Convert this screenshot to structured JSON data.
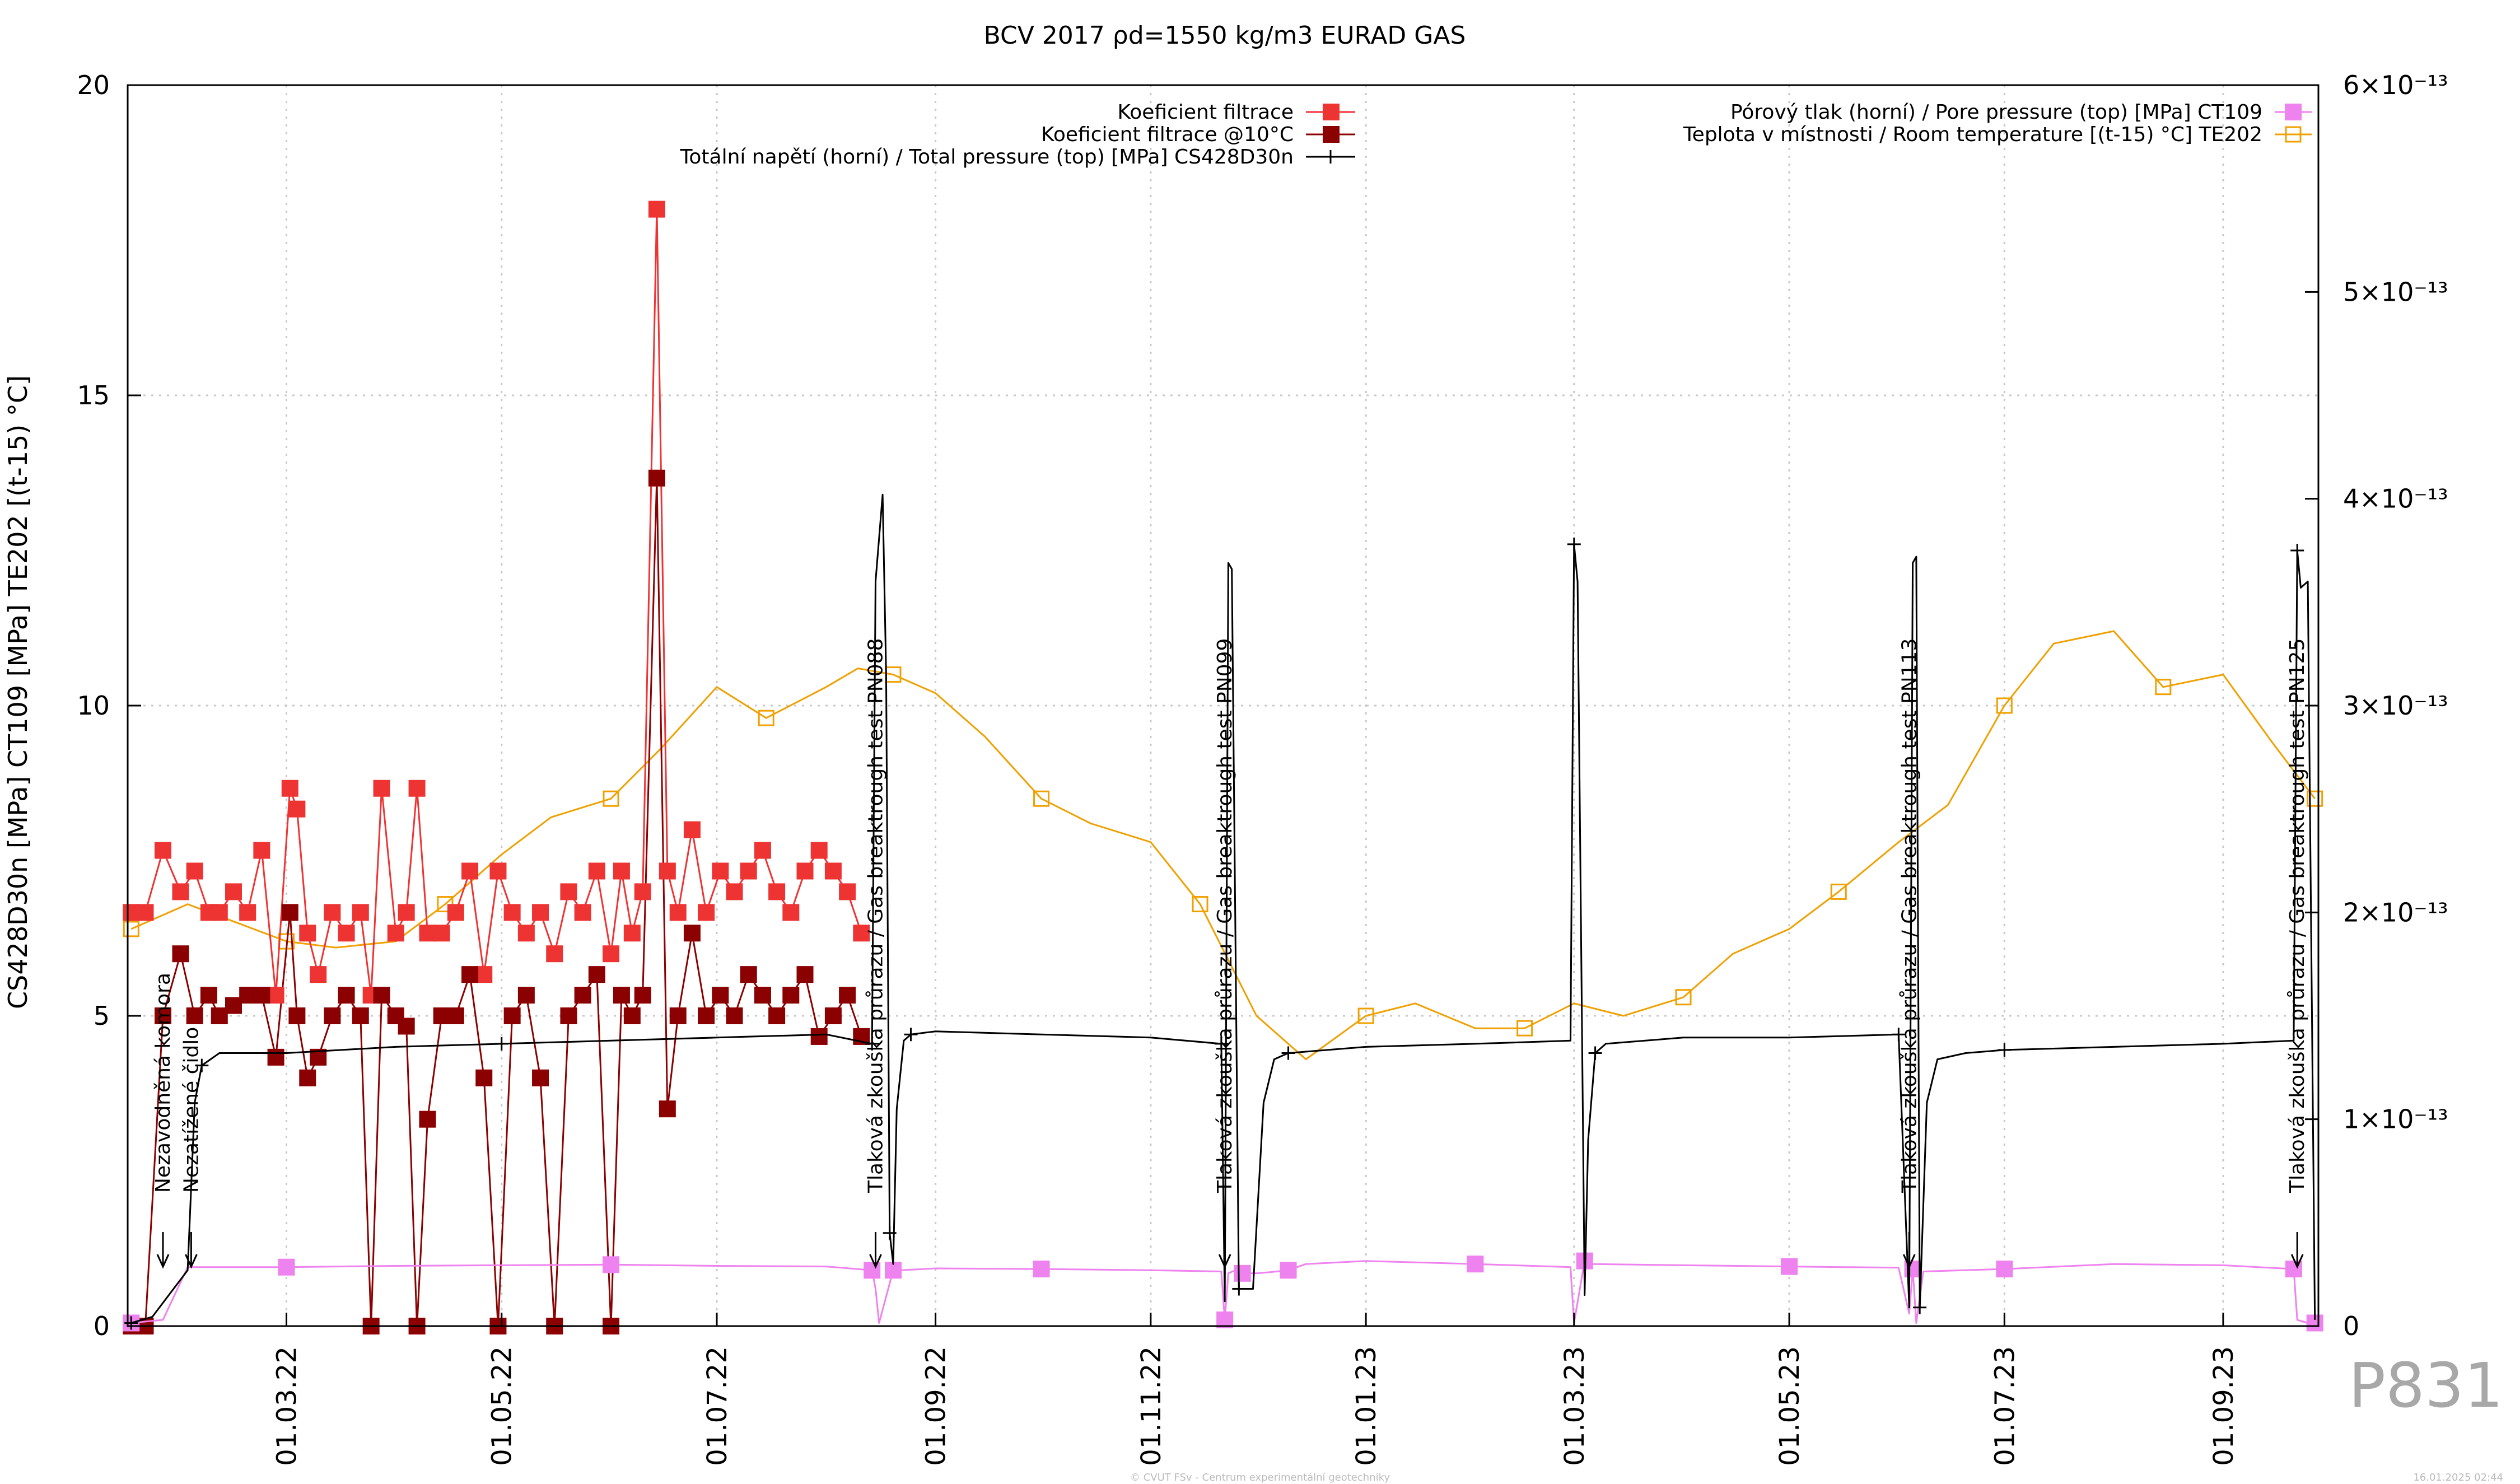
{
  "chart_data": {
    "type": "line",
    "title": "BCV 2017 ρd=1550 kg/m3 EURAD GAS",
    "ylabel": "CS428D30n [MPa] CT109 [MPa] TE202 [(t-15) °C]",
    "ylim": [
      0,
      20
    ],
    "y_ticks": [
      "0",
      "5",
      "10",
      "15",
      "20"
    ],
    "y2lim": [
      0,
      6e-13
    ],
    "y2_ticks": [
      "0",
      "1×10⁻¹³",
      "2×10⁻¹³",
      "3×10⁻¹³",
      "4×10⁻¹³",
      "5×10⁻¹³",
      "6×10⁻¹³"
    ],
    "xlim": [
      "2022-01-15",
      "2023-09-28"
    ],
    "x_ticks": [
      "01.03.22",
      "01.05.22",
      "01.07.22",
      "01.09.22",
      "01.11.22",
      "01.01.23",
      "01.03.23",
      "01.05.23",
      "01.07.23",
      "01.09.23"
    ],
    "x_tick_dates": [
      "2022-03-01",
      "2022-05-01",
      "2022-07-01",
      "2022-09-01",
      "2022-11-01",
      "2023-01-01",
      "2023-03-01",
      "2023-05-01",
      "2023-07-01",
      "2023-09-01"
    ],
    "grid": true,
    "legend_left": [
      "Koeficient filtrace",
      "Koeficient filtrace @10°C",
      "Totální napětí (horní) / Total pressure (top) [MPa] CS428D30n"
    ],
    "legend_right": [
      "Pórový tlak (horní) / Pore pressure (top) [MPa] CT109",
      "Teplota v místnosti / Room temperature [(t-15) °C] TE202"
    ],
    "annotations": [
      {
        "date": "2022-01-25",
        "text": "Nezavodněná komora"
      },
      {
        "date": "2022-02-02",
        "text": "Nezatížené čidlo"
      },
      {
        "date": "2022-08-15",
        "text": "Tlaková zkouška průrazu / Gas breaktrough test PN088"
      },
      {
        "date": "2022-11-22",
        "text": "Tlaková zkouška průrazu / Gas breaktrough test PN099"
      },
      {
        "date": "2023-06-04",
        "text": "Tlaková zkouška průrazu / Gas breaktrough test PN113"
      },
      {
        "date": "2023-09-22",
        "text": "Tlaková zkouška průrazu / Gas breaktrough test PN125"
      }
    ],
    "series": [
      {
        "name": "Totální napětí (horní) / Total pressure (top) [MPa] CS428D30n",
        "axis": "y",
        "color": "#000000",
        "x": [
          "2022-01-16",
          "2022-01-22",
          "2022-02-01",
          "2022-02-03",
          "2022-02-05",
          "2022-02-10",
          "2022-03-01",
          "2022-04-01",
          "2022-05-01",
          "2022-06-01",
          "2022-07-01",
          "2022-08-01",
          "2022-08-14",
          "2022-08-15",
          "2022-08-17",
          "2022-08-18",
          "2022-08-19",
          "2022-08-20",
          "2022-08-21",
          "2022-08-23",
          "2022-08-25",
          "2022-09-01",
          "2022-10-01",
          "2022-11-01",
          "2022-11-21",
          "2022-11-22",
          "2022-11-23",
          "2022-11-24",
          "2022-11-26",
          "2022-11-30",
          "2022-12-03",
          "2022-12-06",
          "2022-12-10",
          "2023-01-01",
          "2023-02-01",
          "2023-02-28",
          "2023-03-01",
          "2023-03-02",
          "2023-03-04",
          "2023-03-05",
          "2023-03-07",
          "2023-03-10",
          "2023-04-01",
          "2023-05-01",
          "2023-06-01",
          "2023-06-04",
          "2023-06-05",
          "2023-06-06",
          "2023-06-07",
          "2023-06-09",
          "2023-06-12",
          "2023-06-20",
          "2023-07-01",
          "2023-08-01",
          "2023-09-01",
          "2023-09-21",
          "2023-09-22",
          "2023-09-23",
          "2023-09-25",
          "2023-09-27"
        ],
        "y": [
          0.05,
          0.15,
          0.9,
          3.6,
          4.2,
          4.4,
          4.4,
          4.5,
          4.55,
          4.6,
          4.65,
          4.7,
          4.55,
          12.0,
          13.4,
          10.5,
          1.5,
          1.0,
          3.5,
          4.6,
          4.7,
          4.75,
          4.7,
          4.65,
          4.55,
          0.4,
          12.3,
          12.2,
          0.6,
          0.6,
          3.6,
          4.3,
          4.4,
          4.5,
          4.55,
          4.6,
          12.6,
          12.0,
          0.5,
          3.0,
          4.4,
          4.55,
          4.65,
          4.65,
          4.7,
          0.3,
          12.3,
          12.4,
          0.3,
          3.6,
          4.3,
          4.4,
          4.45,
          4.5,
          4.55,
          4.6,
          12.5,
          11.9,
          12.0,
          0.1
        ]
      },
      {
        "name": "Pórový tlak (horní) / Pore pressure (top) [MPa] CT109",
        "axis": "y",
        "color": "#ee82ee",
        "x": [
          "2022-01-16",
          "2022-01-25",
          "2022-02-01",
          "2022-03-01",
          "2022-04-01",
          "2022-05-01",
          "2022-06-01",
          "2022-07-01",
          "2022-08-01",
          "2022-08-14",
          "2022-08-15",
          "2022-08-16",
          "2022-08-20",
          "2022-08-22",
          "2022-09-01",
          "2022-10-01",
          "2022-11-01",
          "2022-11-21",
          "2022-11-22",
          "2022-11-23",
          "2022-11-25",
          "2022-11-27",
          "2022-12-01",
          "2022-12-05",
          "2022-12-10",
          "2022-12-15",
          "2023-01-01",
          "2023-02-01",
          "2023-02-28",
          "2023-03-01",
          "2023-03-04",
          "2023-03-06",
          "2023-04-01",
          "2023-05-01",
          "2023-06-01",
          "2023-06-04",
          "2023-06-05",
          "2023-06-06",
          "2023-06-08",
          "2023-07-01",
          "2023-08-01",
          "2023-09-01",
          "2023-09-21",
          "2023-09-22",
          "2023-09-25",
          "2023-09-27"
        ],
        "y": [
          0.05,
          0.1,
          0.95,
          0.95,
          0.97,
          0.98,
          0.99,
          0.97,
          0.96,
          0.9,
          0.6,
          0.05,
          0.9,
          0.9,
          0.93,
          0.92,
          0.9,
          0.88,
          0.1,
          0.85,
          0.9,
          0.85,
          0.85,
          0.87,
          0.9,
          1.0,
          1.05,
          1.0,
          0.95,
          0.05,
          1.05,
          1.0,
          0.98,
          0.96,
          0.94,
          0.2,
          0.92,
          0.05,
          0.88,
          0.92,
          1.0,
          0.98,
          0.92,
          0.1,
          0.05,
          0.05
        ]
      },
      {
        "name": "Teplota v místnosti / Room temperature [(t-15) °C] TE202",
        "axis": "y",
        "color": "#f0a000",
        "x": [
          "2022-01-16",
          "2022-02-01",
          "2022-02-15",
          "2022-03-01",
          "2022-03-15",
          "2022-04-01",
          "2022-04-15",
          "2022-05-01",
          "2022-05-15",
          "2022-06-01",
          "2022-06-15",
          "2022-07-01",
          "2022-07-15",
          "2022-08-01",
          "2022-08-10",
          "2022-08-20",
          "2022-09-01",
          "2022-09-15",
          "2022-10-01",
          "2022-10-15",
          "2022-11-01",
          "2022-11-15",
          "2022-12-01",
          "2022-12-15",
          "2023-01-01",
          "2023-01-15",
          "2023-02-01",
          "2023-02-15",
          "2023-03-01",
          "2023-03-15",
          "2023-04-01",
          "2023-04-15",
          "2023-05-01",
          "2023-05-15",
          "2023-06-01",
          "2023-06-15",
          "2023-07-01",
          "2023-07-15",
          "2023-08-01",
          "2023-08-15",
          "2023-09-01",
          "2023-09-15",
          "2023-09-27"
        ],
        "y": [
          6.4,
          6.8,
          6.5,
          6.2,
          6.1,
          6.2,
          6.8,
          7.6,
          8.2,
          8.5,
          9.3,
          10.3,
          9.8,
          10.3,
          10.6,
          10.5,
          10.2,
          9.5,
          8.5,
          8.1,
          7.8,
          6.8,
          5.0,
          4.3,
          5.0,
          5.2,
          4.8,
          4.8,
          5.2,
          5.0,
          5.3,
          6.0,
          6.4,
          7.0,
          7.8,
          8.4,
          10.0,
          11.0,
          11.2,
          10.3,
          10.5,
          9.4,
          8.5
        ]
      },
      {
        "name": "Koeficient filtrace",
        "axis": "y2",
        "color": "#ee3333",
        "x": [
          "2022-01-16",
          "2022-01-20",
          "2022-01-25",
          "2022-01-30",
          "2022-02-03",
          "2022-02-07",
          "2022-02-10",
          "2022-02-14",
          "2022-02-18",
          "2022-02-22",
          "2022-02-26",
          "2022-03-02",
          "2022-03-04",
          "2022-03-07",
          "2022-03-10",
          "2022-03-14",
          "2022-03-18",
          "2022-03-22",
          "2022-03-25",
          "2022-03-28",
          "2022-04-01",
          "2022-04-04",
          "2022-04-07",
          "2022-04-10",
          "2022-04-14",
          "2022-04-18",
          "2022-04-22",
          "2022-04-26",
          "2022-04-30",
          "2022-05-04",
          "2022-05-08",
          "2022-05-12",
          "2022-05-16",
          "2022-05-20",
          "2022-05-24",
          "2022-05-28",
          "2022-06-01",
          "2022-06-04",
          "2022-06-07",
          "2022-06-10",
          "2022-06-14",
          "2022-06-17",
          "2022-06-20",
          "2022-06-24",
          "2022-06-28",
          "2022-07-02",
          "2022-07-06",
          "2022-07-10",
          "2022-07-14",
          "2022-07-18",
          "2022-07-22",
          "2022-07-26",
          "2022-07-30",
          "2022-08-03",
          "2022-08-07",
          "2022-08-11"
        ],
        "y": [
          2e-13,
          2e-13,
          2.3e-13,
          2.1e-13,
          2.2e-13,
          2e-13,
          2e-13,
          2.1e-13,
          2e-13,
          2.3e-13,
          1.6e-13,
          2.6e-13,
          2.5e-13,
          1.9e-13,
          1.7e-13,
          2e-13,
          1.9e-13,
          2e-13,
          1.6e-13,
          2.6e-13,
          1.9e-13,
          2e-13,
          2.6e-13,
          1.9e-13,
          1.9e-13,
          2e-13,
          2.2e-13,
          1.7e-13,
          2.2e-13,
          2e-13,
          1.9e-13,
          2e-13,
          1.8e-13,
          2.1e-13,
          2e-13,
          2.2e-13,
          1.8e-13,
          2.2e-13,
          1.9e-13,
          2.1e-13,
          5.4e-13,
          2.2e-13,
          2e-13,
          2.4e-13,
          2e-13,
          2.2e-13,
          2.1e-13,
          2.2e-13,
          2.3e-13,
          2.1e-13,
          2e-13,
          2.2e-13,
          2.3e-13,
          2.2e-13,
          2.1e-13,
          1.9e-13
        ]
      },
      {
        "name": "Koeficient filtrace @10°C",
        "axis": "y2",
        "color": "#8b0000",
        "x": [
          "2022-01-16",
          "2022-01-20",
          "2022-01-25",
          "2022-01-30",
          "2022-02-03",
          "2022-02-07",
          "2022-02-10",
          "2022-02-14",
          "2022-02-18",
          "2022-02-22",
          "2022-02-26",
          "2022-03-02",
          "2022-03-04",
          "2022-03-07",
          "2022-03-10",
          "2022-03-14",
          "2022-03-18",
          "2022-03-22",
          "2022-03-25",
          "2022-03-28",
          "2022-04-01",
          "2022-04-04",
          "2022-04-07",
          "2022-04-10",
          "2022-04-14",
          "2022-04-18",
          "2022-04-22",
          "2022-04-26",
          "2022-04-30",
          "2022-05-04",
          "2022-05-08",
          "2022-05-12",
          "2022-05-16",
          "2022-05-20",
          "2022-05-24",
          "2022-05-28",
          "2022-06-01",
          "2022-06-04",
          "2022-06-07",
          "2022-06-10",
          "2022-06-14",
          "2022-06-17",
          "2022-06-20",
          "2022-06-24",
          "2022-06-28",
          "2022-07-02",
          "2022-07-06",
          "2022-07-10",
          "2022-07-14",
          "2022-07-18",
          "2022-07-22",
          "2022-07-26",
          "2022-07-30",
          "2022-08-03",
          "2022-08-07",
          "2022-08-11"
        ],
        "y": [
          0,
          0,
          1.5e-13,
          1.8e-13,
          1.5e-13,
          1.6e-13,
          1.5e-13,
          1.55e-13,
          1.6e-13,
          1.6e-13,
          1.3e-13,
          2e-13,
          1.5e-13,
          1.2e-13,
          1.3e-13,
          1.5e-13,
          1.6e-13,
          1.5e-13,
          0,
          1.6e-13,
          1.5e-13,
          1.45e-13,
          0,
          1e-13,
          1.5e-13,
          1.5e-13,
          1.7e-13,
          1.2e-13,
          0,
          1.5e-13,
          1.6e-13,
          1.2e-13,
          0,
          1.5e-13,
          1.6e-13,
          1.7e-13,
          0,
          1.6e-13,
          1.5e-13,
          1.6e-13,
          4.1e-13,
          1.05e-13,
          1.5e-13,
          1.9e-13,
          1.5e-13,
          1.6e-13,
          1.5e-13,
          1.7e-13,
          1.6e-13,
          1.5e-13,
          1.6e-13,
          1.7e-13,
          1.4e-13,
          1.5e-13,
          1.6e-13,
          1.4e-13
        ]
      }
    ]
  },
  "watermark": {
    "id": "P831",
    "footer": "© CVUT FSv - Centrum experimentální geotechniky",
    "date": "16.01.2025 02:44"
  }
}
